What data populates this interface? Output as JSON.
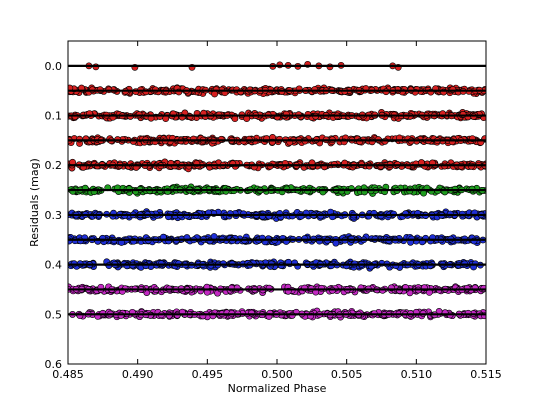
{
  "chart_data": {
    "type": "scatter",
    "title": "",
    "xlabel": "Normalized Phase",
    "ylabel": "Residuals (mag)",
    "xlim": [
      0.485,
      0.515
    ],
    "ylim": [
      0.6,
      -0.05
    ],
    "y_inverted": true,
    "grid": false,
    "legend": "none",
    "x_ticks": [
      0.485,
      0.49,
      0.495,
      0.5,
      0.505,
      0.51,
      0.515
    ],
    "x_tick_labels": [
      "0.485",
      "0.490",
      "0.495",
      "0.500",
      "0.505",
      "0.510",
      "0.515"
    ],
    "y_ticks": [
      0.0,
      0.1,
      0.2,
      0.3,
      0.4,
      0.5,
      0.6
    ],
    "y_tick_labels": [
      "0.0",
      "0.1",
      "0.2",
      "0.3",
      "0.4",
      "0.5",
      "0.6"
    ],
    "model_line_color": "#000000",
    "series": [
      {
        "offset": 0.0,
        "color": "#d62020",
        "coverage": "partial",
        "points": [
          [
            0.4865,
            0.0
          ],
          [
            0.487,
            0.002
          ],
          [
            0.4898,
            0.003
          ],
          [
            0.4939,
            0.003
          ],
          [
            0.4997,
            0.001
          ],
          [
            0.5002,
            -0.002
          ],
          [
            0.5008,
            -0.001
          ],
          [
            0.5015,
            0.001
          ],
          [
            0.5022,
            -0.003
          ],
          [
            0.503,
            0.0
          ],
          [
            0.5038,
            0.002
          ],
          [
            0.5046,
            -0.001
          ],
          [
            0.5083,
            0.0
          ],
          [
            0.5087,
            0.003
          ]
        ]
      },
      {
        "offset": 0.05,
        "color": "#d62020",
        "coverage": "full"
      },
      {
        "offset": 0.1,
        "color": "#d62020",
        "coverage": "full"
      },
      {
        "offset": 0.15,
        "color": "#d62020",
        "coverage": "full"
      },
      {
        "offset": 0.2,
        "color": "#d62020",
        "coverage": "full"
      },
      {
        "offset": 0.25,
        "color": "#1f9d1f",
        "coverage": "full"
      },
      {
        "offset": 0.3,
        "color": "#1f2fd6",
        "coverage": "full"
      },
      {
        "offset": 0.35,
        "color": "#1f2fd6",
        "coverage": "full"
      },
      {
        "offset": 0.4,
        "color": "#1f2fd6",
        "coverage": "full"
      },
      {
        "offset": 0.45,
        "color": "#c229c2",
        "coverage": "full"
      },
      {
        "offset": 0.5,
        "color": "#c229c2",
        "coverage": "full"
      }
    ]
  }
}
